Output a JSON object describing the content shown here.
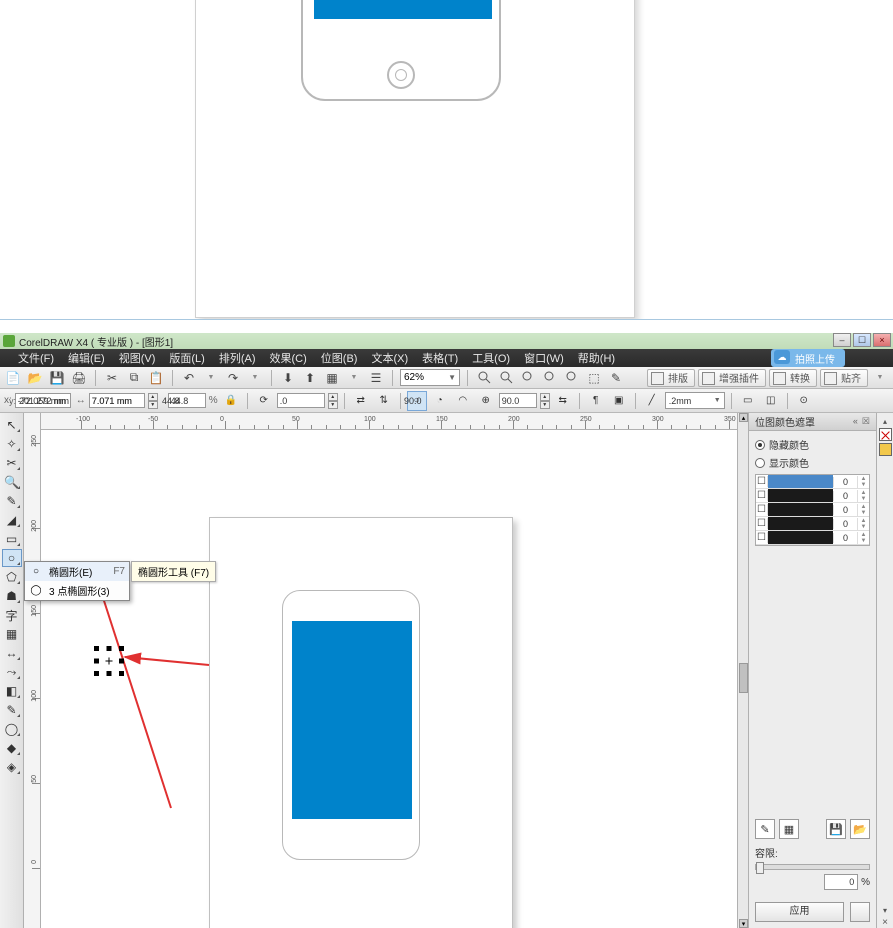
{
  "app": {
    "title": "CorelDRAW X4 ( 专业版 ) - [图形1]"
  },
  "menus": [
    "文件(F)",
    "编辑(E)",
    "视图(V)",
    "版面(L)",
    "排列(A)",
    "效果(C)",
    "位图(B)",
    "文本(X)",
    "表格(T)",
    "工具(O)",
    "窗口(W)",
    "帮助(H)"
  ],
  "upload_label": "拍照上传",
  "zoom": "62%",
  "nav_buttons": [
    "排版",
    "增强插件",
    "转换",
    "贴齐"
  ],
  "propbar": {
    "x": "-72.059 mm",
    "y": "201.272 mm",
    "w": "7.071 mm",
    "h": "7.071 mm",
    "sx": "44.8",
    "sy": "44.8",
    "rot": ".0",
    "ang1": "90.0",
    "ang2": "90.0",
    "outline": ".2mm"
  },
  "flyout": {
    "item1": "椭圆形(E)",
    "item1_shortcut": "F7",
    "item2": "3 点椭圆形(3)",
    "tooltip": "椭圆形工具 (F7)"
  },
  "ruler_h_labels": [
    "-100",
    "-50",
    "0",
    "50",
    "100",
    "150",
    "200",
    "250",
    "300",
    "350"
  ],
  "ruler_v_labels": [
    "250",
    "200",
    "150",
    "100",
    "50",
    "0"
  ],
  "docker": {
    "title": "位图颜色遮罩",
    "radio_hide": "隐藏颜色",
    "radio_show": "显示颜色",
    "tolerance_label": "容限:",
    "tolerance_value": "0",
    "tolerance_unit": "%",
    "apply": "应用",
    "colors": [
      {
        "color": "#4a88c8",
        "val": "0"
      },
      {
        "color": "#1a1a1a",
        "val": "0"
      },
      {
        "color": "#1a1a1a",
        "val": "0"
      },
      {
        "color": "#1a1a1a",
        "val": "0"
      },
      {
        "color": "#1a1a1a",
        "val": "0"
      }
    ]
  },
  "palette_colors": [
    "#f2c84b"
  ],
  "colors": {
    "phone_screen": "#0083cb",
    "arrow": "#e03030",
    "page_bg": "#ffffff"
  }
}
